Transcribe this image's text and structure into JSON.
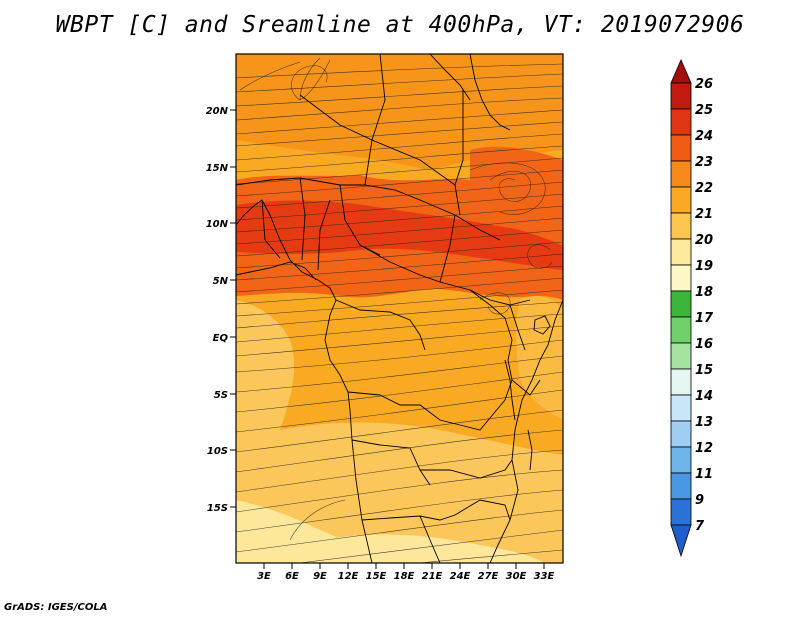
{
  "title": "WBPT [C] and Sreamline at 400hPa, VT: 2019072906",
  "footer": "GrADS: IGES/COLA",
  "map": {
    "lon_range": [
      0,
      35
    ],
    "lat_range": [
      -20,
      24
    ],
    "lon_ticks": [
      "3E",
      "6E",
      "9E",
      "12E",
      "15E",
      "18E",
      "21E",
      "24E",
      "27E",
      "30E",
      "33E"
    ],
    "lat_ticks": [
      "20N",
      "15N",
      "10N",
      "5N",
      "EQ",
      "5S",
      "10S",
      "15S"
    ],
    "colors": {
      "lt19": "#fde79a",
      "19_20": "#fbc65a",
      "20_21": "#f9aa22",
      "21_22": "#f6951a",
      "22_23": "#f26516",
      "23_24": "#e63b12"
    }
  },
  "colorbar": {
    "labels": [
      "26",
      "25",
      "24",
      "23",
      "22",
      "21",
      "20",
      "19",
      "18",
      "17",
      "16",
      "15",
      "14",
      "13",
      "12",
      "11",
      "9",
      "7"
    ],
    "colors": [
      "#a50c0c",
      "#c11a10",
      "#e03512",
      "#f25b13",
      "#f8891a",
      "#fba824",
      "#fcc54e",
      "#fde99e",
      "#fdf7c8",
      "#3cb63a",
      "#6fd06c",
      "#a6e3a2",
      "#e4f6f2",
      "#c7e6f8",
      "#9fcef2",
      "#6eb3ea",
      "#4a97e3",
      "#2a72d8",
      "#1f5ccc"
    ]
  }
}
